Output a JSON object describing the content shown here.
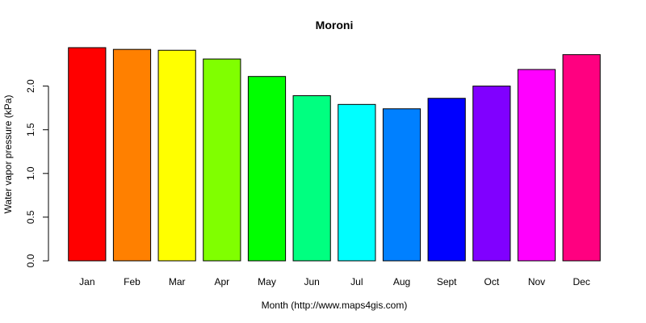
{
  "chart_data": {
    "type": "bar",
    "title": "Moroni",
    "xlabel": "Month (http://www.maps4gis.com)",
    "ylabel": "Water vapor pressure (kPa)",
    "categories": [
      "Jan",
      "Feb",
      "Mar",
      "Apr",
      "May",
      "Jun",
      "Jul",
      "Aug",
      "Sept",
      "Oct",
      "Nov",
      "Dec"
    ],
    "values": [
      2.44,
      2.42,
      2.41,
      2.31,
      2.11,
      1.89,
      1.79,
      1.74,
      1.86,
      2.0,
      2.19,
      2.36
    ],
    "colors": [
      "#FF0000",
      "#FF8000",
      "#FFFF00",
      "#80FF00",
      "#00FF00",
      "#00FF80",
      "#00FFFF",
      "#0080FF",
      "#0000FF",
      "#8000FF",
      "#FF00FF",
      "#FF0080"
    ],
    "yticks": [
      "0.0",
      "0.5",
      "1.0",
      "1.5",
      "2.0"
    ],
    "ylim": [
      0,
      2.44
    ],
    "grid": false,
    "legend": "none"
  }
}
